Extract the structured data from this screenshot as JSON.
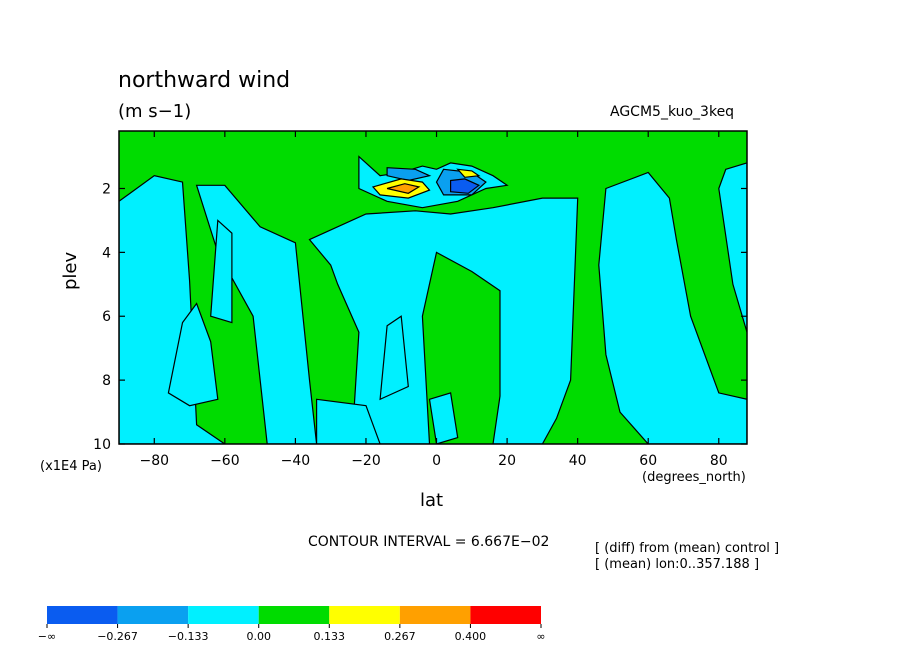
{
  "title": "northward wind",
  "units": "(m s−1)",
  "model": "AGCM5_kuo_3keq",
  "ylabel": "plev",
  "yunit": "(x1E4 Pa)",
  "xlabel": "lat",
  "xunit": "(degrees_north)",
  "contour_interval": "CONTOUR INTERVAL = 6.667E−02",
  "notes": [
    "[ (diff) from (mean) control ]",
    "[ (mean) lon:0..357.188 ]"
  ],
  "colors": {
    "level_neg2": "#0a5cf0",
    "level_neg1": "#0aa0f0",
    "level_neg0": "#00f0ff",
    "level_pos0": "#00dc00",
    "level_pos1": "#ffff00",
    "level_pos2": "#ffa000",
    "level_pos3": "#ff0000"
  },
  "chart_data": {
    "type": "heatmap",
    "title": "northward wind",
    "xlabel": "lat",
    "ylabel": "plev",
    "xlim": [
      -90,
      88
    ],
    "ylim": [
      10,
      0.2
    ],
    "x_ticks": [
      "−80",
      "−60",
      "−40",
      "−20",
      "0",
      "20",
      "40",
      "60",
      "80"
    ],
    "x_tick_values": [
      -80,
      -60,
      -40,
      -20,
      0,
      20,
      40,
      60,
      80
    ],
    "y_ticks": [
      "2",
      "4",
      "6",
      "8",
      "10"
    ],
    "y_tick_values": [
      2,
      4,
      6,
      8,
      10
    ],
    "colorbar": {
      "labels": [
        "−∞",
        "−0.267",
        "−0.133",
        "0.00",
        "0.133",
        "0.267",
        "0.400",
        "∞"
      ],
      "colors": [
        "#0a5cf0",
        "#0aa0f0",
        "#00f0ff",
        "#00dc00",
        "#ffff00",
        "#ffa000",
        "#ff0000"
      ]
    },
    "regions": [
      {
        "level": "level_neg0",
        "pts": [
          [
            -90,
            2.4
          ],
          [
            -80,
            1.6
          ],
          [
            -72,
            1.8
          ],
          [
            -70,
            4.9
          ],
          [
            -68,
            9.4
          ],
          [
            -60,
            10
          ],
          [
            -90,
            10
          ]
        ]
      },
      {
        "level": "level_neg0",
        "pts": [
          [
            -68,
            1.9
          ],
          [
            -60,
            1.9
          ],
          [
            -50,
            3.2
          ],
          [
            -40,
            3.7
          ],
          [
            -36,
            8.0
          ],
          [
            -34,
            10
          ],
          [
            -48,
            10
          ],
          [
            -52,
            6.0
          ],
          [
            -62,
            4.0
          ]
        ]
      },
      {
        "level": "level_neg0",
        "pts": [
          [
            -62,
            3.0
          ],
          [
            -58,
            3.4
          ],
          [
            -58,
            6.2
          ],
          [
            -64,
            6.0
          ]
        ]
      },
      {
        "level": "level_neg0",
        "pts": [
          [
            -72,
            6.2
          ],
          [
            -68,
            5.6
          ],
          [
            -64,
            6.8
          ],
          [
            -62,
            8.6
          ],
          [
            -70,
            8.8
          ],
          [
            -76,
            8.4
          ]
        ]
      },
      {
        "level": "level_neg0",
        "pts": [
          [
            -36,
            3.6
          ],
          [
            -20,
            2.8
          ],
          [
            -6,
            2.7
          ],
          [
            4,
            2.8
          ],
          [
            16,
            2.6
          ],
          [
            30,
            2.3
          ],
          [
            40,
            2.3
          ],
          [
            38,
            8.0
          ],
          [
            34,
            9.2
          ],
          [
            30,
            10
          ],
          [
            16,
            10
          ],
          [
            18,
            8.5
          ],
          [
            18,
            5.2
          ],
          [
            10,
            4.6
          ],
          [
            0,
            4.0
          ],
          [
            -4,
            6.0
          ],
          [
            -2,
            10
          ],
          [
            -24,
            10
          ],
          [
            -22,
            6.5
          ],
          [
            -28,
            5.0
          ],
          [
            -30,
            4.4
          ]
        ]
      },
      {
        "level": "level_neg0",
        "pts": [
          [
            -14,
            6.3
          ],
          [
            -10,
            6.0
          ],
          [
            -8,
            8.2
          ],
          [
            -16,
            8.6
          ]
        ]
      },
      {
        "level": "level_neg0",
        "pts": [
          [
            -2,
            8.6
          ],
          [
            4,
            8.4
          ],
          [
            6,
            9.8
          ],
          [
            0,
            10
          ]
        ]
      },
      {
        "level": "level_neg0",
        "pts": [
          [
            48,
            2.0
          ],
          [
            60,
            1.5
          ],
          [
            66,
            2.3
          ],
          [
            68,
            3.6
          ],
          [
            72,
            6.0
          ],
          [
            80,
            8.4
          ],
          [
            88,
            8.6
          ],
          [
            88,
            10
          ],
          [
            60,
            10
          ],
          [
            52,
            9.0
          ],
          [
            48,
            7.2
          ],
          [
            46,
            4.4
          ]
        ]
      },
      {
        "level": "level_neg0",
        "pts": [
          [
            82,
            1.4
          ],
          [
            88,
            1.2
          ],
          [
            88,
            6.5
          ],
          [
            84,
            5.0
          ],
          [
            80,
            2.0
          ]
        ]
      },
      {
        "level": "level_neg0",
        "pts": [
          [
            -34,
            8.6
          ],
          [
            -20,
            8.8
          ],
          [
            -16,
            10
          ],
          [
            -34,
            10
          ]
        ]
      },
      {
        "level": "level_neg0",
        "pts": [
          [
            -22,
            1.0
          ],
          [
            -16,
            1.6
          ],
          [
            -10,
            1.5
          ],
          [
            -4,
            1.3
          ],
          [
            0,
            1.4
          ],
          [
            4,
            1.2
          ],
          [
            10,
            1.3
          ],
          [
            16,
            1.6
          ],
          [
            20,
            1.9
          ],
          [
            14,
            2.0
          ],
          [
            6,
            2.4
          ],
          [
            -4,
            2.6
          ],
          [
            -14,
            2.4
          ],
          [
            -22,
            2.0
          ]
        ]
      },
      {
        "level": "level_neg1",
        "pts": [
          [
            -14,
            1.35
          ],
          [
            -6,
            1.4
          ],
          [
            -2,
            1.6
          ],
          [
            -8,
            1.75
          ],
          [
            -14,
            1.6
          ]
        ]
      },
      {
        "level": "level_neg1",
        "pts": [
          [
            2,
            1.4
          ],
          [
            10,
            1.5
          ],
          [
            14,
            1.8
          ],
          [
            10,
            2.2
          ],
          [
            2,
            2.2
          ],
          [
            0,
            1.8
          ]
        ]
      },
      {
        "level": "level_neg2",
        "pts": [
          [
            4,
            1.75
          ],
          [
            8,
            1.7
          ],
          [
            12,
            1.9
          ],
          [
            9,
            2.15
          ],
          [
            4,
            2.1
          ]
        ]
      },
      {
        "level": "level_pos1",
        "pts": [
          [
            -18,
            1.95
          ],
          [
            -10,
            1.7
          ],
          [
            -4,
            1.8
          ],
          [
            -2,
            2.05
          ],
          [
            -8,
            2.3
          ],
          [
            -16,
            2.2
          ]
        ]
      },
      {
        "level": "level_pos2",
        "pts": [
          [
            -14,
            2.0
          ],
          [
            -9,
            1.85
          ],
          [
            -5,
            1.95
          ],
          [
            -8,
            2.15
          ]
        ]
      },
      {
        "level": "level_pos1",
        "pts": [
          [
            6,
            1.4
          ],
          [
            10,
            1.45
          ],
          [
            12,
            1.6
          ],
          [
            8,
            1.65
          ]
        ]
      }
    ]
  }
}
